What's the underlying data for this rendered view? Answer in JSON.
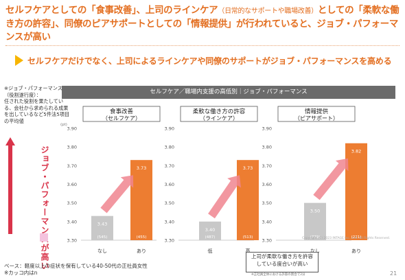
{
  "title": {
    "main_1": "セルフケアとしての「食事改善」、上司のラインケア",
    "main_1_sub": "（日常的なサポートや職場改善）",
    "main_2": "としての「柔軟な働き方の許容」、同僚のピアサポートとしての「情報提供」が行われていると、ジョブ・パフォーマンスが高い"
  },
  "subheading": "セルフケアだけでなく、上司によるラインケアや同僚のサポートがジョブ・パフォーマンスを高める",
  "panel_header": "セルフケア／職場内支援の高低別｜ジョブ・パフォーマンス",
  "note": {
    "title": "※ジョブ・パフォーマンス（役割遂行度）：",
    "body": "任された役割を果たしている、会社から求められる成果を出しているなど5件法5項目の平均値"
  },
  "side_label": "ジョブ・パフォーマンスが高い",
  "base_note": "ベース：軽度以上の症状を保有している40-50代の正社員女性",
  "base_note2": "※カッコ内はn",
  "callout": {
    "line1": "上司が柔軟な働き方を許容",
    "line2": "している度合いが高い",
    "small": "※正社員全体における許容の割合で2分"
  },
  "copyright": "Copyright (C) 2023 INTAGE Inc., Ltd. All Rights Reserved.",
  "page_number": "21",
  "colors": {
    "low_bar": "#c8c8c8",
    "high_bar": "#ed7d31",
    "arrow": "#f0858f",
    "accent": "#e36f21"
  },
  "chart_data": [
    {
      "type": "bar",
      "title": "食事改善",
      "subtitle": "（セルフケア）",
      "unit": "(pt)",
      "categories": [
        "なし",
        "あり"
      ],
      "values": [
        3.43,
        3.73
      ],
      "value_labels": [
        "3.43",
        "3.73"
      ],
      "n_labels": [
        "(545)",
        "(455)"
      ],
      "ylim": [
        3.3,
        3.9
      ],
      "yticks": [
        "3.30",
        "3.40",
        "3.50",
        "3.60",
        "3.70",
        "3.80",
        "3.90"
      ]
    },
    {
      "type": "bar",
      "title": "柔軟な働き方の許容",
      "subtitle": "（ラインケア）",
      "categories": [
        "低",
        "高"
      ],
      "values": [
        3.4,
        3.73
      ],
      "value_labels": [
        "3.40",
        "3.73"
      ],
      "n_labels": [
        "(487)",
        "(513)"
      ],
      "ylim": [
        3.3,
        3.9
      ],
      "yticks": [
        "3.30",
        "3.40",
        "3.50",
        "3.60",
        "3.70",
        "3.80",
        "3.90"
      ]
    },
    {
      "type": "bar",
      "title": "情報提供",
      "subtitle": "（ピアサポート）",
      "categories": [
        "なし",
        "あり"
      ],
      "values": [
        3.5,
        3.82
      ],
      "value_labels": [
        "3.50",
        "3.82"
      ],
      "n_labels": [
        "(779)",
        "(221)"
      ],
      "ylim": [
        3.3,
        3.9
      ],
      "yticks": [
        "3.30",
        "3.40",
        "3.50",
        "3.60",
        "3.70",
        "3.80",
        "3.90"
      ]
    }
  ]
}
